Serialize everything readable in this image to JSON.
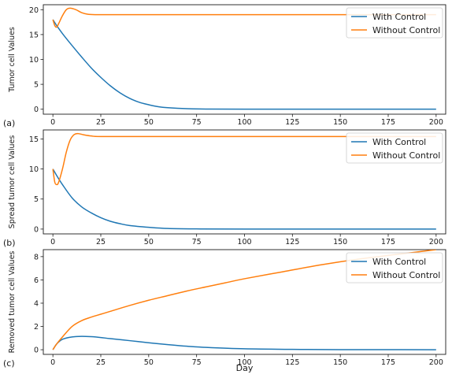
{
  "figure": {
    "xlabel": "Day"
  },
  "colors": {
    "with_control": "#1f77b4",
    "without_control": "#ff7f0e",
    "axes": "#1a1a1a",
    "legend_border": "#cccccc"
  },
  "chart_data": [
    {
      "type": "line",
      "panel_label": "(a)",
      "ylabel": "Tumor cell  Values",
      "xlim": [
        -5,
        205
      ],
      "ylim": [
        -1,
        21
      ],
      "xticks": [
        0,
        25,
        50,
        75,
        100,
        125,
        150,
        175,
        200
      ],
      "yticks": [
        0,
        5,
        10,
        15,
        20
      ],
      "legend_position": "top-right",
      "series": [
        {
          "name": "With Control",
          "color": "#1f77b4",
          "points": [
            [
              0,
              18
            ],
            [
              2,
              16.8
            ],
            [
              5,
              15.2
            ],
            [
              10,
              12.8
            ],
            [
              15,
              10.5
            ],
            [
              20,
              8.3
            ],
            [
              25,
              6.4
            ],
            [
              30,
              4.7
            ],
            [
              35,
              3.3
            ],
            [
              40,
              2.2
            ],
            [
              45,
              1.4
            ],
            [
              50,
              0.9
            ],
            [
              55,
              0.5
            ],
            [
              60,
              0.3
            ],
            [
              70,
              0.1
            ],
            [
              80,
              0.03
            ],
            [
              100,
              0.0
            ],
            [
              150,
              0.0
            ],
            [
              200,
              0.0
            ]
          ]
        },
        {
          "name": "Without Control",
          "color": "#ff7f0e",
          "points": [
            [
              0,
              18
            ],
            [
              1,
              16.8
            ],
            [
              2,
              16.5
            ],
            [
              3,
              17.2
            ],
            [
              5,
              18.8
            ],
            [
              7,
              20.0
            ],
            [
              9,
              20.3
            ],
            [
              12,
              20.0
            ],
            [
              15,
              19.4
            ],
            [
              18,
              19.1
            ],
            [
              22,
              19.0
            ],
            [
              30,
              19.0
            ],
            [
              50,
              19.0
            ],
            [
              100,
              19.0
            ],
            [
              150,
              19.0
            ],
            [
              200,
              19.0
            ]
          ]
        }
      ]
    },
    {
      "type": "line",
      "panel_label": "(b)",
      "ylabel": "Spread tumor cell  Values",
      "xlim": [
        -5,
        205
      ],
      "ylim": [
        -0.8,
        16.5
      ],
      "xticks": [
        0,
        25,
        50,
        75,
        100,
        125,
        150,
        175,
        200
      ],
      "yticks": [
        0,
        5,
        10,
        15
      ],
      "legend_position": "top-right",
      "series": [
        {
          "name": "With Control",
          "color": "#1f77b4",
          "points": [
            [
              0,
              10
            ],
            [
              2,
              8.9
            ],
            [
              5,
              7.4
            ],
            [
              10,
              5.2
            ],
            [
              15,
              3.7
            ],
            [
              20,
              2.7
            ],
            [
              25,
              1.9
            ],
            [
              30,
              1.3
            ],
            [
              35,
              0.9
            ],
            [
              40,
              0.6
            ],
            [
              50,
              0.3
            ],
            [
              60,
              0.1
            ],
            [
              75,
              0.03
            ],
            [
              100,
              0.0
            ],
            [
              150,
              0.0
            ],
            [
              200,
              0.0
            ]
          ]
        },
        {
          "name": "Without Control",
          "color": "#ff7f0e",
          "points": [
            [
              0,
              10
            ],
            [
              1,
              7.8
            ],
            [
              2,
              7.4
            ],
            [
              3,
              7.8
            ],
            [
              5,
              10.0
            ],
            [
              7,
              12.8
            ],
            [
              9,
              14.8
            ],
            [
              11,
              15.7
            ],
            [
              13,
              15.9
            ],
            [
              16,
              15.7
            ],
            [
              20,
              15.5
            ],
            [
              25,
              15.4
            ],
            [
              50,
              15.4
            ],
            [
              100,
              15.4
            ],
            [
              150,
              15.4
            ],
            [
              200,
              15.4
            ]
          ]
        }
      ]
    },
    {
      "type": "line",
      "panel_label": "(c)",
      "ylabel": "Removed tumor cell  Values",
      "xlim": [
        -5,
        205
      ],
      "ylim": [
        -0.4,
        8.6
      ],
      "xticks": [
        0,
        25,
        50,
        75,
        100,
        125,
        150,
        175,
        200
      ],
      "yticks": [
        0,
        2,
        4,
        6,
        8
      ],
      "legend_position": "top-right",
      "series": [
        {
          "name": "With Control",
          "color": "#1f77b4",
          "points": [
            [
              0,
              0
            ],
            [
              2,
              0.5
            ],
            [
              5,
              0.9
            ],
            [
              10,
              1.1
            ],
            [
              15,
              1.15
            ],
            [
              20,
              1.12
            ],
            [
              25,
              1.05
            ],
            [
              30,
              0.95
            ],
            [
              40,
              0.78
            ],
            [
              50,
              0.6
            ],
            [
              60,
              0.44
            ],
            [
              70,
              0.3
            ],
            [
              80,
              0.2
            ],
            [
              100,
              0.08
            ],
            [
              125,
              0.03
            ],
            [
              150,
              0.01
            ],
            [
              200,
              0.0
            ]
          ]
        },
        {
          "name": "Without Control",
          "color": "#ff7f0e",
          "points": [
            [
              0,
              0
            ],
            [
              2,
              0.5
            ],
            [
              5,
              1.1
            ],
            [
              10,
              2.0
            ],
            [
              15,
              2.5
            ],
            [
              20,
              2.8
            ],
            [
              25,
              3.05
            ],
            [
              30,
              3.3
            ],
            [
              40,
              3.8
            ],
            [
              50,
              4.25
            ],
            [
              60,
              4.65
            ],
            [
              70,
              5.05
            ],
            [
              80,
              5.4
            ],
            [
              90,
              5.75
            ],
            [
              100,
              6.1
            ],
            [
              120,
              6.7
            ],
            [
              140,
              7.3
            ],
            [
              160,
              7.8
            ],
            [
              180,
              8.2
            ],
            [
              200,
              8.6
            ]
          ]
        }
      ]
    }
  ]
}
